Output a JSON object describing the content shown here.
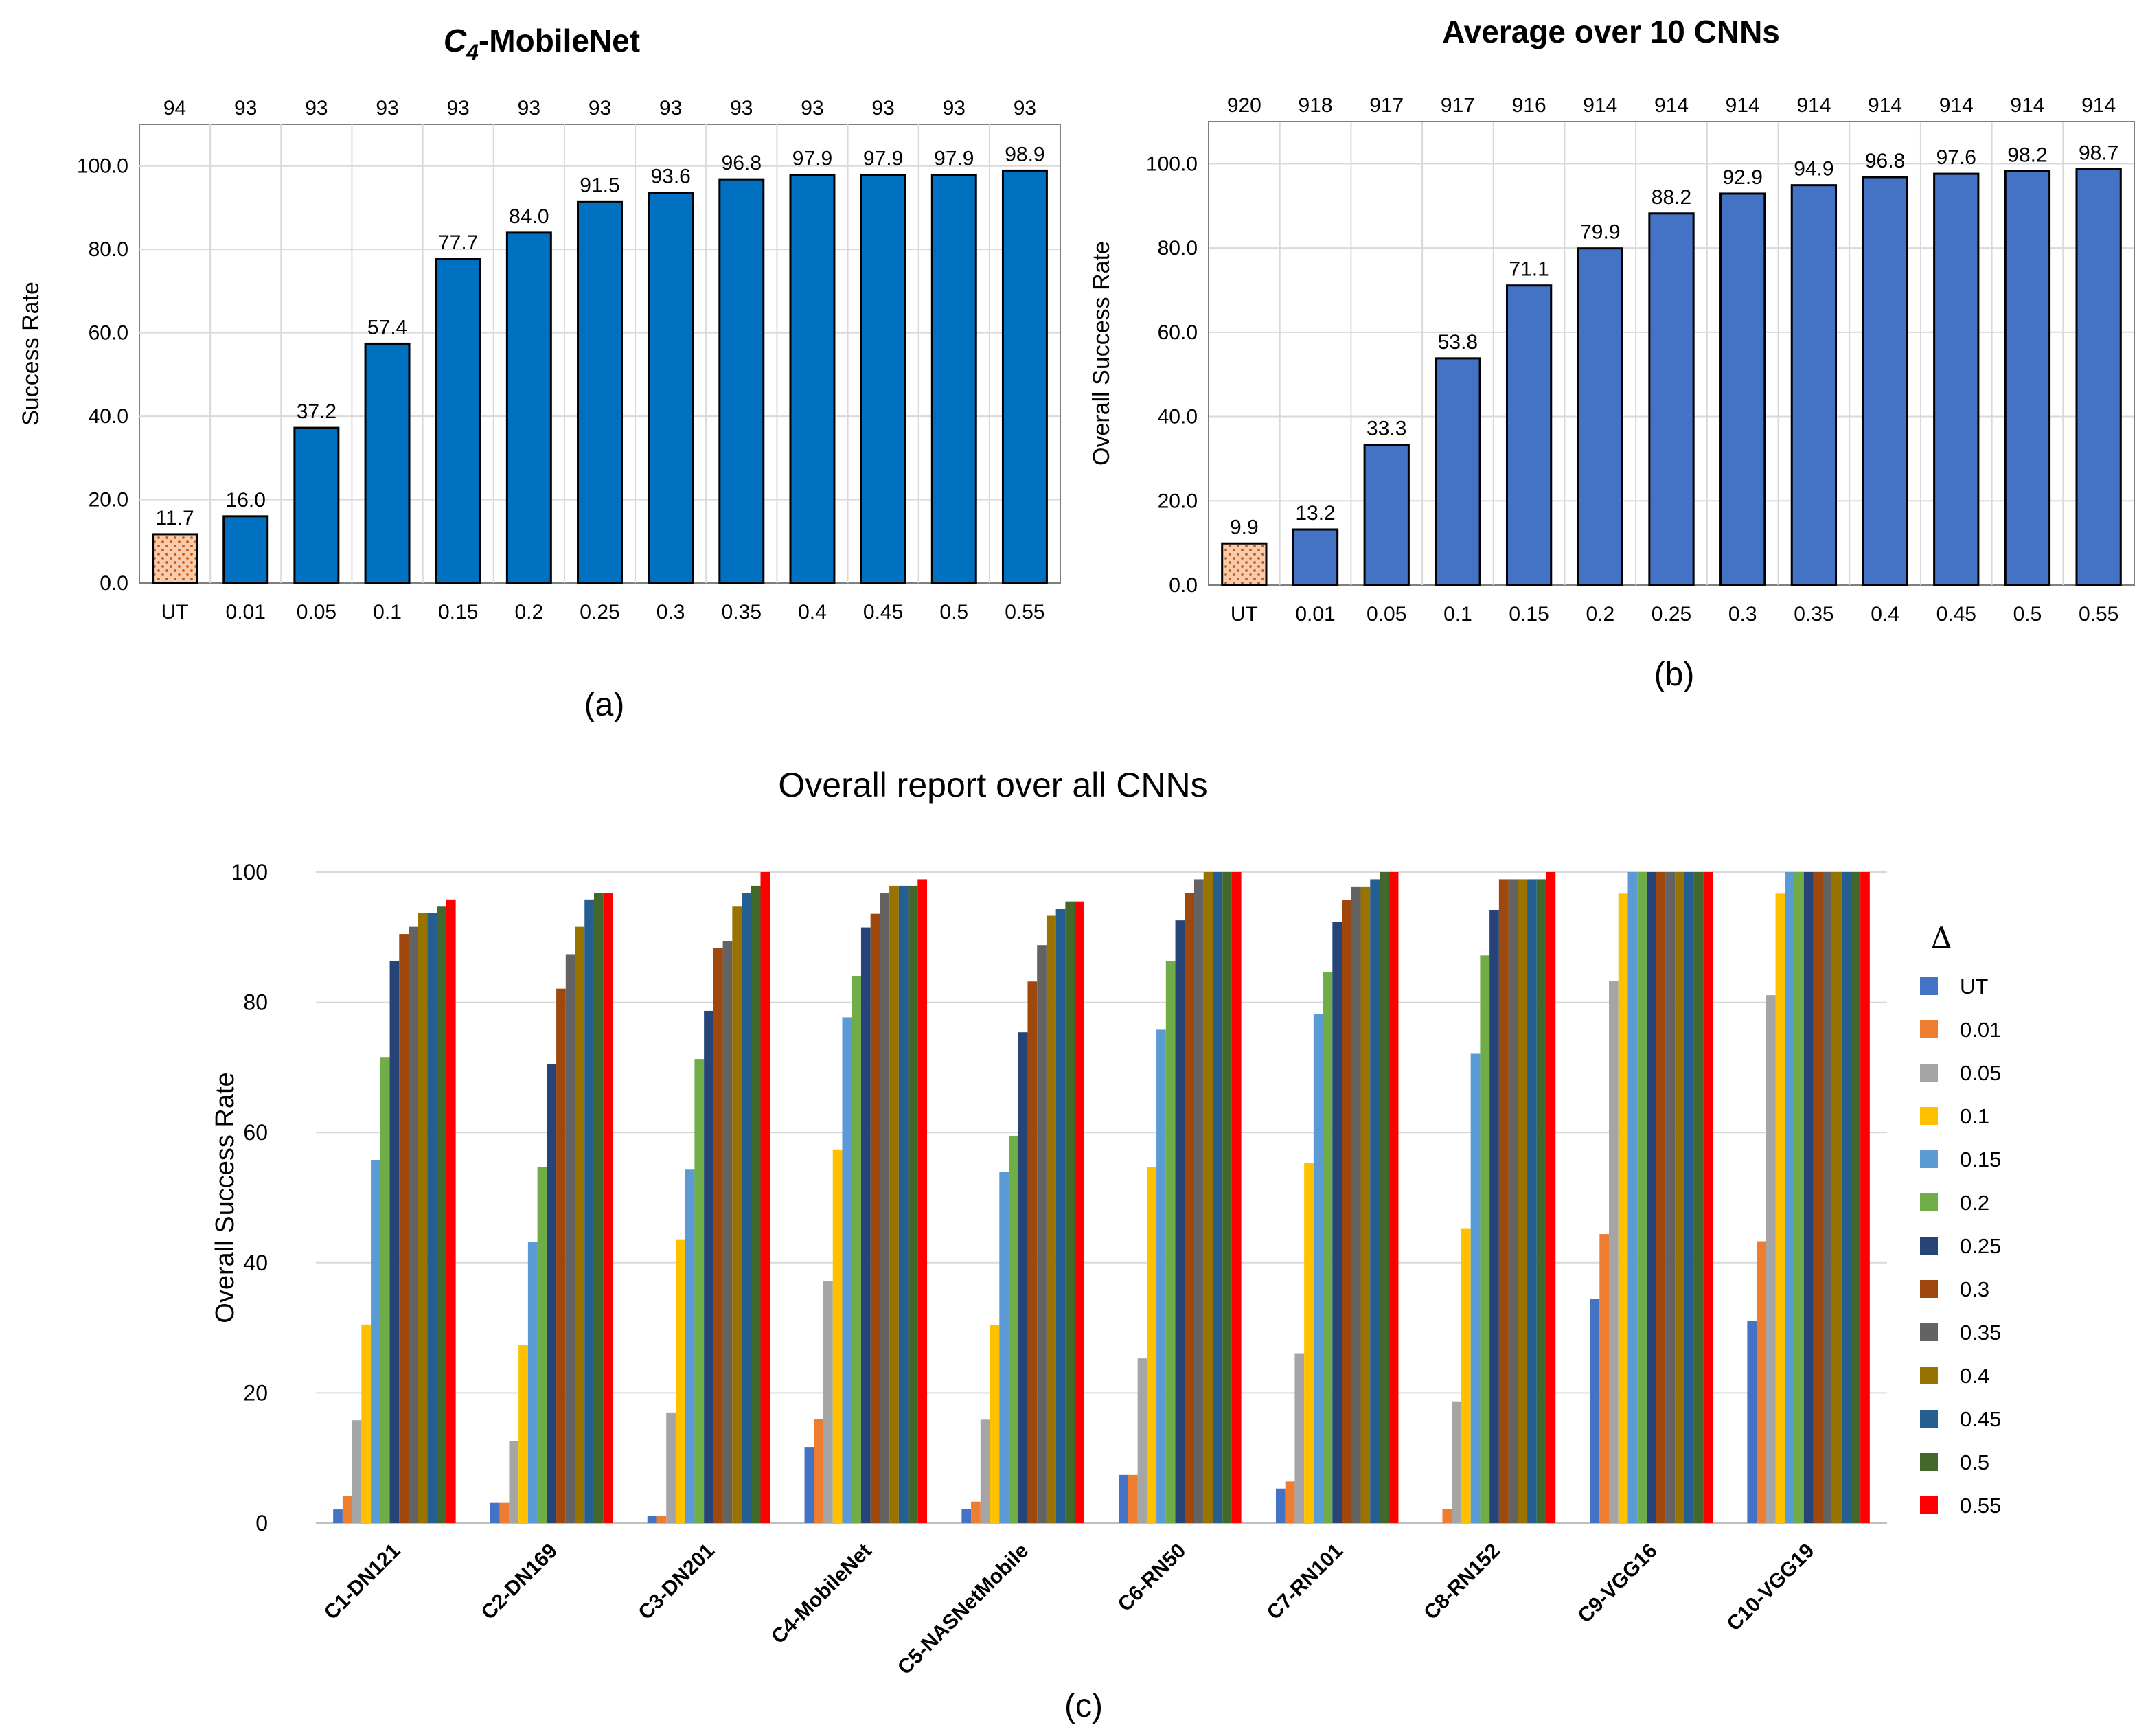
{
  "chart_data": [
    {
      "id": "a",
      "type": "bar",
      "title": "-MobileNet",
      "title_prefix": "C",
      "title_subscript": "4",
      "panel_label": "(a)",
      "xlabel": "",
      "ylabel": "Success Rate",
      "ylim": [
        0,
        110
      ],
      "yticks": [
        "0.0",
        "20.0",
        "40.0",
        "60.0",
        "80.0",
        "100.0"
      ],
      "categories": [
        "UT",
        "0.01",
        "0.05",
        "0.1",
        "0.15",
        "0.2",
        "0.25",
        "0.3",
        "0.35",
        "0.4",
        "0.45",
        "0.5",
        "0.55"
      ],
      "values": [
        11.7,
        16.0,
        37.2,
        57.4,
        77.7,
        84.0,
        91.5,
        93.6,
        96.8,
        97.9,
        97.9,
        97.9,
        98.9
      ],
      "value_labels": [
        "11.7",
        "16.0",
        "37.2",
        "57.4",
        "77.7",
        "84.0",
        "91.5",
        "93.6",
        "96.8",
        "97.9",
        "97.9",
        "97.9",
        "98.9"
      ],
      "top_labels": [
        "94",
        "93",
        "93",
        "93",
        "93",
        "93",
        "93",
        "93",
        "93",
        "93",
        "93",
        "93",
        "93"
      ],
      "bar_color": "#0070C0",
      "ut_color": "#F8CBAD",
      "ut_dot_color": "#C55A11"
    },
    {
      "id": "b",
      "type": "bar",
      "title": "Average over 10 CNNs",
      "panel_label": "(b)",
      "xlabel": "",
      "ylabel": "Overall Success Rate",
      "ylim": [
        0,
        110
      ],
      "yticks": [
        "0.0",
        "20.0",
        "40.0",
        "60.0",
        "80.0",
        "100.0"
      ],
      "categories": [
        "UT",
        "0.01",
        "0.05",
        "0.1",
        "0.15",
        "0.2",
        "0.25",
        "0.3",
        "0.35",
        "0.4",
        "0.45",
        "0.5",
        "0.55"
      ],
      "values": [
        9.9,
        13.2,
        33.3,
        53.8,
        71.1,
        79.9,
        88.2,
        92.9,
        94.9,
        96.8,
        97.6,
        98.2,
        98.7
      ],
      "value_labels": [
        "9.9",
        "13.2",
        "33.3",
        "53.8",
        "71.1",
        "79.9",
        "88.2",
        "92.9",
        "94.9",
        "96.8",
        "97.6",
        "98.2",
        "98.7"
      ],
      "top_labels": [
        "920",
        "918",
        "917",
        "917",
        "916",
        "914",
        "914",
        "914",
        "914",
        "914",
        "914",
        "914",
        "914"
      ],
      "bar_color": "#4472C4",
      "ut_color": "#F8CBAD",
      "ut_dot_color": "#C55A11"
    },
    {
      "id": "c",
      "type": "bar",
      "title": "Overall report over all CNNs",
      "panel_label": "(c)",
      "xlabel": "",
      "ylabel": "Overall Success Rate",
      "ylim": [
        0,
        100
      ],
      "yticks": [
        "0",
        "20",
        "40",
        "60",
        "80",
        "100"
      ],
      "legend_title": "Δ",
      "legend_position": "right",
      "categories": [
        "C1-DN121",
        "C2-DN169",
        "C3-DN201",
        "C4-MobileNet",
        "C5-NASNetMobile",
        "C6-RN50",
        "C7-RN101",
        "C8-RN152",
        "C9-VGG16",
        "C10-VGG19"
      ],
      "series": [
        {
          "name": "UT",
          "color": "#4472C4",
          "values": [
            2.1,
            3.2,
            1.1,
            11.7,
            2.2,
            7.4,
            5.3,
            0,
            34.4,
            31.1
          ]
        },
        {
          "name": "0.01",
          "color": "#ED7D31",
          "values": [
            4.2,
            3.2,
            1.1,
            16.0,
            3.3,
            7.4,
            6.4,
            2.2,
            44.4,
            43.3
          ]
        },
        {
          "name": "0.05",
          "color": "#A5A5A5",
          "values": [
            15.8,
            12.6,
            17.0,
            37.2,
            15.9,
            25.3,
            26.1,
            18.7,
            83.3,
            81.1
          ]
        },
        {
          "name": "0.1",
          "color": "#FFC000",
          "values": [
            30.5,
            27.4,
            43.6,
            57.4,
            30.4,
            54.7,
            55.3,
            45.3,
            96.7,
            96.7
          ]
        },
        {
          "name": "0.15",
          "color": "#5B9BD5",
          "values": [
            55.8,
            43.2,
            54.3,
            77.7,
            54.0,
            75.8,
            78.2,
            72.1,
            100,
            100
          ]
        },
        {
          "name": "0.2",
          "color": "#70AD47",
          "values": [
            71.6,
            54.7,
            71.3,
            84.0,
            59.5,
            86.3,
            84.7,
            87.2,
            100,
            100
          ]
        },
        {
          "name": "0.25",
          "color": "#264478",
          "values": [
            86.3,
            70.5,
            78.7,
            91.5,
            75.4,
            92.6,
            92.4,
            94.2,
            100,
            100
          ]
        },
        {
          "name": "0.3",
          "color": "#9E480E",
          "values": [
            90.5,
            82.1,
            88.3,
            93.6,
            83.2,
            96.8,
            95.7,
            98.9,
            100,
            100
          ]
        },
        {
          "name": "0.35",
          "color": "#636363",
          "values": [
            91.6,
            87.4,
            89.4,
            96.8,
            88.8,
            98.9,
            97.8,
            98.9,
            100,
            100
          ]
        },
        {
          "name": "0.4",
          "color": "#997300",
          "values": [
            93.7,
            91.6,
            94.7,
            97.9,
            93.3,
            100,
            97.8,
            98.9,
            100,
            100
          ]
        },
        {
          "name": "0.45",
          "color": "#255E91",
          "values": [
            93.7,
            95.8,
            96.8,
            97.9,
            94.4,
            100,
            98.9,
            98.9,
            100,
            100
          ]
        },
        {
          "name": "0.5",
          "color": "#43682B",
          "values": [
            94.7,
            96.8,
            97.9,
            97.9,
            95.5,
            100,
            100,
            98.9,
            100,
            100
          ]
        },
        {
          "name": "0.55",
          "color": "#FF0000",
          "values": [
            95.8,
            96.8,
            100,
            98.9,
            95.5,
            100,
            100,
            100,
            100,
            100
          ]
        }
      ]
    }
  ]
}
